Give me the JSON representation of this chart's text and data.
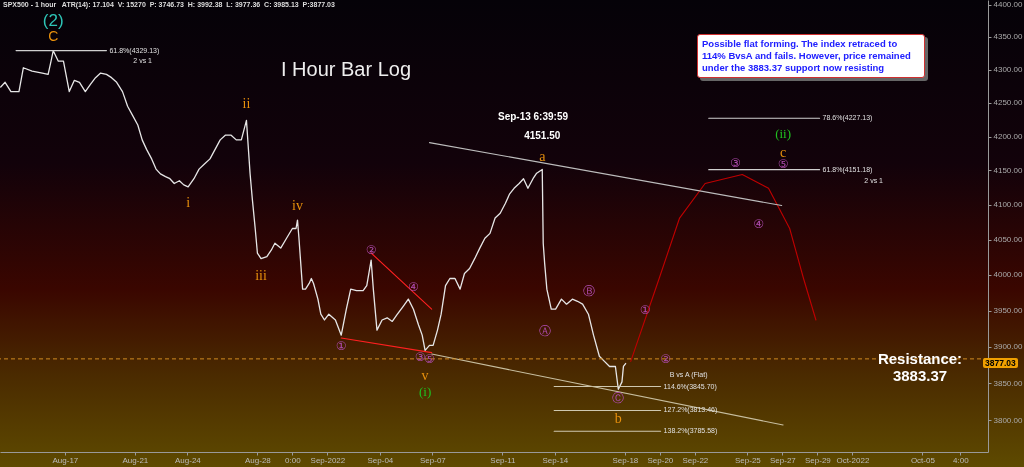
{
  "chart_data": {
    "type": "line",
    "title": "I Hour Bar Log",
    "subtitle": "SPX500 - 1 hour   ATR(14): 17.104  V: 15270  P: 3746.73  H: 3992.38  L: 3977.36  C: 3985.13  P:3877.03",
    "log": true,
    "marker": "none",
    "xlim": [
      "2022-08-13T07:00",
      "2022-10-08T18:00"
    ],
    "xticks": [
      {
        "value": "2022-08-17",
        "label": "Aug-17"
      },
      {
        "value": "2022-08-21",
        "label": "Aug-21"
      },
      {
        "value": "2022-08-24",
        "label": "Aug-24"
      },
      {
        "value": "2022-08-28",
        "label": "Aug-28"
      },
      {
        "value": "2022-08-30T00:00",
        "label": "0:00"
      },
      {
        "value": "2022-09-01",
        "label": "Sep-2022"
      },
      {
        "value": "2022-09-04",
        "label": "Sep-04"
      },
      {
        "value": "2022-09-07",
        "label": "Sep-07"
      },
      {
        "value": "2022-09-11",
        "label": "Sep-11"
      },
      {
        "value": "2022-09-14",
        "label": "Sep-14"
      },
      {
        "value": "2022-09-18",
        "label": "Sep-18"
      },
      {
        "value": "2022-09-20",
        "label": "Sep-20"
      },
      {
        "value": "2022-09-22",
        "label": "Sep-22"
      },
      {
        "value": "2022-09-25",
        "label": "Sep-25"
      },
      {
        "value": "2022-09-27",
        "label": "Sep-27"
      },
      {
        "value": "2022-09-29",
        "label": "Sep-29"
      },
      {
        "value": "2022-10-01",
        "label": "Oct-2022"
      },
      {
        "value": "2022-10-05",
        "label": "Oct-05"
      },
      {
        "value": "2022-10-07T04:00",
        "label": "4:00"
      }
    ],
    "ylim": [
      3758,
      4407
    ],
    "yticks": [
      {
        "value": 3800,
        "label": "3800.00"
      },
      {
        "value": 3850,
        "label": "3850.00"
      },
      {
        "value": 3900,
        "label": "3900.00"
      },
      {
        "value": 3950,
        "label": "3950.00"
      },
      {
        "value": 4000,
        "label": "4000.00"
      },
      {
        "value": 4050,
        "label": "4050.00"
      },
      {
        "value": 4100,
        "label": "4100.00"
      },
      {
        "value": 4150,
        "label": "4150.00"
      },
      {
        "value": 4200,
        "label": "4200.00"
      },
      {
        "value": 4250,
        "label": "4250.00"
      },
      {
        "value": 4300,
        "label": "4300.00"
      },
      {
        "value": 4350,
        "label": "4350.00"
      },
      {
        "value": 4400,
        "label": "4400.00"
      }
    ],
    "series": [
      {
        "type": "line",
        "color": "#e6e6e6",
        "x": [
          "2022-08-13T08:00",
          "2022-08-13T14:00",
          "2022-08-13T22:00",
          "2022-08-14T09:00",
          "2022-08-14T15:00",
          "2022-08-15T03:00",
          "2022-08-15T17:00",
          "2022-08-16T01:00",
          "2022-08-16T05:00",
          "2022-08-16T08:00",
          "2022-08-16T15:00",
          "2022-08-16T22:00",
          "2022-08-17T06:00",
          "2022-08-17T13:00",
          "2022-08-17T20:00",
          "2022-08-18T04:00",
          "2022-08-18T11:00",
          "2022-08-18T18:00",
          "2022-08-19T01:00",
          "2022-08-19T09:00",
          "2022-08-19T16:00",
          "2022-08-19T23:00",
          "2022-08-20T07:00",
          "2022-08-20T14:00",
          "2022-08-20T21:00",
          "2022-08-21T04:00",
          "2022-08-21T10:00",
          "2022-08-21T16:00",
          "2022-08-21T23:00",
          "2022-08-22T05:00",
          "2022-08-22T11:00",
          "2022-08-22T18:00",
          "2022-08-23T00:00",
          "2022-08-23T06:00",
          "2022-08-23T13:00",
          "2022-08-23T19:00",
          "2022-08-24T01:00",
          "2022-08-24T09:00",
          "2022-08-24T16:00",
          "2022-08-24T23:00",
          "2022-08-25T07:00",
          "2022-08-25T14:00",
          "2022-08-25T21:00",
          "2022-08-26T04:00",
          "2022-08-26T12:00",
          "2022-08-26T19:00",
          "2022-08-27T02:00",
          "2022-08-27T09:00",
          "2022-08-27T14:00",
          "2022-08-27T17:00",
          "2022-08-27T21:00",
          "2022-08-28T00:00",
          "2022-08-28T05:00",
          "2022-08-28T13:00",
          "2022-08-28T19:00",
          "2022-08-29T00:00",
          "2022-08-29T08:00",
          "2022-08-29T16:00",
          "2022-08-30T00:00",
          "2022-08-30T05:00",
          "2022-08-30T07:00",
          "2022-08-30T09:00",
          "2022-08-30T11:00",
          "2022-08-30T14:00",
          "2022-08-30T18:00",
          "2022-08-30T23:00",
          "2022-08-31T02:00",
          "2022-08-31T05:00",
          "2022-08-31T11:00",
          "2022-08-31T15:00",
          "2022-08-31T20:00",
          "2022-09-01T02:00",
          "2022-09-01T11:00",
          "2022-09-01T19:00",
          "2022-09-02T02:00",
          "2022-09-02T08:00",
          "2022-09-02T16:00",
          "2022-09-03T01:00",
          "2022-09-03T06:00",
          "2022-09-03T12:00",
          "2022-09-03T15:00",
          "2022-09-03T20:00",
          "2022-09-04T03:00",
          "2022-09-04T10:00",
          "2022-09-04T17:00",
          "2022-09-05T00:00",
          "2022-09-05T08:00",
          "2022-09-05T15:00",
          "2022-09-05T22:00",
          "2022-09-06T05:00",
          "2022-09-06T10:00",
          "2022-09-06T14:00",
          "2022-09-06T20:00",
          "2022-09-07T01:00",
          "2022-09-07T07:00",
          "2022-09-07T12:00",
          "2022-09-07T18:00",
          "2022-09-08T00:00",
          "2022-09-08T07:00",
          "2022-09-08T14:00",
          "2022-09-08T20:00",
          "2022-09-09T03:00",
          "2022-09-09T10:00",
          "2022-09-09T17:00",
          "2022-09-10T00:00",
          "2022-09-10T07:00",
          "2022-09-10T14:00",
          "2022-09-10T21:00",
          "2022-09-11T04:00",
          "2022-09-11T10:00",
          "2022-09-11T16:00",
          "2022-09-11T23:00",
          "2022-09-12T05:00",
          "2022-09-12T11:00",
          "2022-09-12T18:00",
          "2022-09-12T23:00",
          "2022-09-13T06:40",
          "2022-09-13T08:00",
          "2022-09-13T10:00",
          "2022-09-13T13:00",
          "2022-09-13T19:00",
          "2022-09-14T01:00",
          "2022-09-14T09:00",
          "2022-09-14T16:00",
          "2022-09-15T00:00",
          "2022-09-15T07:00",
          "2022-09-15T14:00",
          "2022-09-15T22:00",
          "2022-09-16T05:00",
          "2022-09-16T13:00",
          "2022-09-16T20:00",
          "2022-09-17T03:00",
          "2022-09-17T11:00",
          "2022-09-17T15:00",
          "2022-09-17T20:00",
          "2022-09-17T22:00",
          "2022-09-18T01:00"
        ],
        "values": [
          4274,
          4281,
          4267,
          4267,
          4303,
          4298,
          4295,
          4293,
          4313,
          4329,
          4313,
          4313,
          4267,
          4284,
          4281,
          4267,
          4278,
          4288,
          4295,
          4293,
          4288,
          4281,
          4267,
          4245,
          4231,
          4217,
          4195,
          4181,
          4167,
          4152,
          4145,
          4141,
          4138,
          4131,
          4135,
          4129,
          4126,
          4138,
          4152,
          4159,
          4167,
          4181,
          4195,
          4202,
          4202,
          4195,
          4195,
          4224,
          4145,
          4109,
          4066,
          4031,
          4023,
          4026,
          4035,
          4045,
          4038,
          4052,
          4066,
          4066,
          4078,
          4052,
          4023,
          3980,
          3980,
          3988,
          3995,
          3988,
          3966,
          3945,
          3937,
          3945,
          3937,
          3916,
          3952,
          3980,
          3978,
          3978,
          3985,
          4021,
          3980,
          3923,
          3937,
          3940,
          3935,
          3945,
          3956,
          3966,
          3952,
          3930,
          3916,
          3895,
          3902,
          3902,
          3923,
          3945,
          3985,
          3995,
          3995,
          3980,
          4002,
          4009,
          4023,
          4038,
          4052,
          4059,
          4081,
          4088,
          4102,
          4116,
          4124,
          4131,
          4138,
          4124,
          4138,
          4146,
          4151.5,
          4045,
          4016,
          3980,
          3952,
          3952,
          3966,
          3959,
          3966,
          3963,
          3959,
          3945,
          3916,
          3887,
          3880,
          3873,
          3873,
          3842,
          3852,
          3873,
          3877.03
        ]
      },
      {
        "type": "line",
        "color": "#c00000",
        "x": [
          "2022-09-18T08:00",
          "2022-09-19T23:00",
          "2022-09-21T03:00",
          "2022-09-22T14:00",
          "2022-09-24T17:00",
          "2022-09-26T05:00",
          "2022-09-27T10:00",
          "2022-09-28T05:00",
          "2022-09-28T22:00"
        ],
        "values": [
          3880,
          3995,
          4081,
          4131,
          4144,
          4124,
          4066,
          3995,
          3937
        ]
      },
      {
        "type": "line",
        "color": "#cfcfcf",
        "x": [
          "2022-08-14T05:00",
          "2022-08-19T09:00"
        ],
        "values": [
          4329.13,
          4329.13
        ]
      },
      {
        "type": "line",
        "color": "#cfcfcf",
        "x": [
          "2022-09-22T19:00",
          "2022-09-29T03:00"
        ],
        "values": [
          4227.13,
          4227.13
        ]
      },
      {
        "type": "line",
        "color": "#cfcfcf",
        "x": [
          "2022-09-22T19:00",
          "2022-09-29T03:00"
        ],
        "values": [
          4151.18,
          4151.18
        ]
      },
      {
        "type": "line",
        "color": "#cfc8b0",
        "x": [
          "2022-09-13T23:00",
          "2022-09-20T01:00"
        ],
        "values": [
          3845.7,
          3845.7
        ]
      },
      {
        "type": "line",
        "color": "#cfc8b0",
        "x": [
          "2022-09-13T23:00",
          "2022-09-20T01:00"
        ],
        "values": [
          3813.46,
          3813.46
        ]
      },
      {
        "type": "line",
        "color": "#cfc8b0",
        "x": [
          "2022-09-13T23:00",
          "2022-09-20T01:00"
        ],
        "values": [
          3785.58,
          3785.58
        ]
      },
      {
        "type": "line",
        "color": "#bdbdbd",
        "x": [
          "2022-09-06T20:00",
          "2022-09-26T23:00"
        ],
        "values": [
          4191,
          4099
        ]
      },
      {
        "type": "line",
        "color": "#c8bfa0",
        "x": [
          "2022-09-06T23:00",
          "2022-09-27T01:00"
        ],
        "values": [
          3890,
          3794
        ]
      },
      {
        "type": "line",
        "color": "#ff2020",
        "x": [
          "2022-09-01T19:00",
          "2022-09-06T23:00"
        ],
        "values": [
          3912,
          3892
        ]
      },
      {
        "type": "line",
        "color": "#ff2020",
        "x": [
          "2022-09-03T12:00",
          "2022-09-06T23:00"
        ],
        "values": [
          4031,
          3952
        ]
      }
    ],
    "ref_lines": [
      {
        "axis": "y",
        "value": 3883.37,
        "label": "Resistance: 3883.37",
        "color": "#d08a20",
        "line_style": "dashed"
      }
    ],
    "annotations": [
      {
        "text": "(2)",
        "x": "2022-08-16T08:00",
        "y": 4329
      },
      {
        "text": "C",
        "x": "2022-08-16T08:00",
        "y": 4329
      },
      {
        "text": "i",
        "x": "2022-08-24T01:00",
        "y": 4126
      },
      {
        "text": "ii",
        "x": "2022-08-27T09:00",
        "y": 4224
      },
      {
        "text": "iii",
        "x": "2022-08-28T05:00",
        "y": 4023
      },
      {
        "text": "iv",
        "x": "2022-08-30T07:00",
        "y": 4078
      },
      {
        "text": "v",
        "x": "2022-09-06T14:00",
        "y": 3895
      },
      {
        "text": "(i)",
        "x": "2022-09-06T14:00",
        "y": 3895
      },
      {
        "text": "a",
        "x": "2022-09-13T06:40",
        "y": 4151.5
      },
      {
        "text": "b",
        "x": "2022-09-17T15:00",
        "y": 3842
      },
      {
        "text": "c",
        "x": "2022-09-27T01:00",
        "y": 4151.18
      },
      {
        "text": "(ii)",
        "x": "2022-09-27T01:00",
        "y": 4151.18
      },
      {
        "text": "①",
        "x": "2022-09-01T19:00",
        "y": 3916
      },
      {
        "text": "②",
        "x": "2022-09-03T12:00",
        "y": 4021
      },
      {
        "text": "③",
        "x": "2022-09-06T10:00",
        "y": 3916
      },
      {
        "text": "④",
        "x": "2022-09-05T22:00",
        "y": 3952
      },
      {
        "text": "⑤",
        "x": "2022-09-06T20:00",
        "y": 3902
      },
      {
        "text": "Ⓐ",
        "x": "2022-09-13T13:00",
        "y": 3980
      },
      {
        "text": "Ⓑ",
        "x": "2022-09-15T14:00",
        "y": 3959
      },
      {
        "text": "Ⓒ",
        "x": "2022-09-17T15:00",
        "y": 3842
      },
      {
        "text": "①",
        "x": "2022-09-19T23:00",
        "y": 3995
      },
      {
        "text": "②",
        "x": "2022-09-20T08:00",
        "y": 3883.37
      },
      {
        "text": "③",
        "x": "2022-09-24T17:00",
        "y": 4144
      },
      {
        "text": "④",
        "x": "2022-09-26T05:00",
        "y": 4124
      },
      {
        "text": "⑤",
        "x": "2022-09-27T01:00",
        "y": 4151.18
      },
      "Sep-13 6:39:59",
      {
        "text": "4151.50",
        "x": "2022-09-13T06:40",
        "y": 4151.5
      },
      {
        "text": "61.8%(4329.13)",
        "x": "2022-08-19T09:00",
        "y": 4329.13
      },
      "2 vs 1",
      {
        "text": "78.6%(4227.13)",
        "x": "2022-09-29T03:00",
        "y": 4227.13
      },
      {
        "text": "61.8%(4151.18)",
        "x": "2022-09-29T03:00",
        "y": 4151.18
      },
      "2 vs 1",
      {
        "text": "B vs A (Flat)",
        "x": "2022-09-20T01:00",
        "y": 3845.7
      },
      {
        "text": "114.6%(3845.70)",
        "x": "2022-09-20T01:00",
        "y": 3845.7
      },
      {
        "text": "127.2%(3813.46)",
        "x": "2022-09-20T01:00",
        "y": 3813.46
      },
      {
        "text": "138.2%(3785.58)",
        "x": "2022-09-20T01:00",
        "y": 3785.58
      },
      "3877.03",
      "Possible flat forming.  The index retraced to 114% BvsA and fails. However, price remained under the 3883.37 support now resisting"
    ]
  }
}
